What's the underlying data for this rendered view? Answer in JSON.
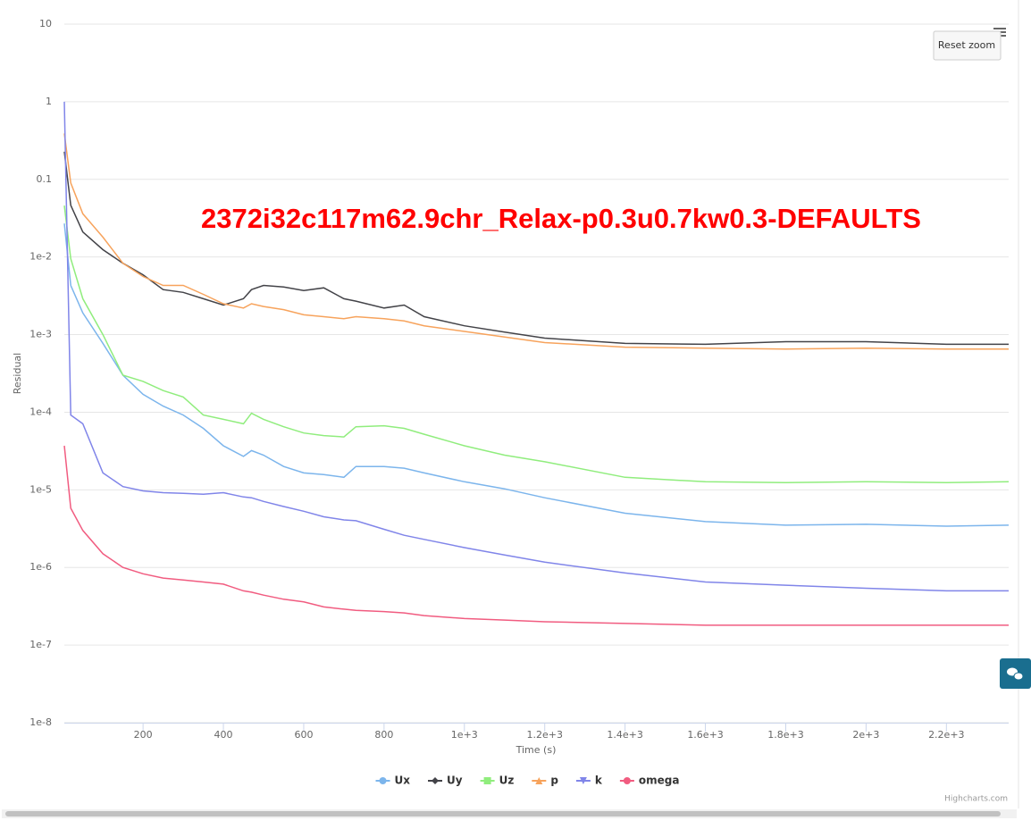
{
  "chart_data": {
    "type": "line",
    "annotation": "2372i32c117m62.9chr_Relax-p0.3u0.7kw0.3-DEFAULTS",
    "xlabel": "Time (s)",
    "ylabel": "Residual",
    "reset_zoom": "Reset zoom",
    "credits": "Highcharts.com",
    "ylog": true,
    "grid": true,
    "legend_position": "bottom",
    "xlim": [
      4,
      2355
    ],
    "ylim": [
      1e-08,
      10
    ],
    "xticks": [
      200,
      400,
      600,
      800,
      {
        "value": 1000,
        "label": "1e+3"
      },
      {
        "value": 1200,
        "label": "1.2e+3"
      },
      {
        "value": 1400,
        "label": "1.4e+3"
      },
      {
        "value": 1600,
        "label": "1.6e+3"
      },
      {
        "value": 1800,
        "label": "1.8e+3"
      },
      {
        "value": 2000,
        "label": "2e+3"
      },
      {
        "value": 2200,
        "label": "2.2e+3"
      }
    ],
    "yticks": [
      {
        "value": 1e-08,
        "label": "1e-8"
      },
      {
        "value": 1e-07,
        "label": "1e-7"
      },
      {
        "value": 1e-06,
        "label": "1e-6"
      },
      {
        "value": 1e-05,
        "label": "1e-5"
      },
      {
        "value": 0.0001,
        "label": "1e-4"
      },
      {
        "value": 0.001,
        "label": "1e-3"
      },
      {
        "value": 0.01,
        "label": "1e-2"
      },
      0.1,
      1,
      10
    ],
    "x": [
      4,
      20,
      50,
      100,
      150,
      200,
      250,
      300,
      350,
      400,
      450,
      470,
      500,
      550,
      600,
      650,
      700,
      730,
      800,
      850,
      900,
      1000,
      1100,
      1200,
      1400,
      1600,
      1800,
      2000,
      2200,
      2355
    ],
    "series": [
      {
        "name": "Ux",
        "color": "#7cb5ec",
        "marker": "circle",
        "values": [
          0.027,
          0.0043,
          0.0019,
          0.00077,
          0.0003,
          0.00017,
          0.00012,
          9.2e-05,
          6.2e-05,
          3.7e-05,
          2.7e-05,
          3.2e-05,
          2.8e-05,
          2e-05,
          1.65e-05,
          1.57e-05,
          1.45e-05,
          2e-05,
          2e-05,
          1.9e-05,
          1.65e-05,
          1.27e-05,
          1.03e-05,
          7.9e-06,
          5e-06,
          3.9e-06,
          3.5e-06,
          3.6e-06,
          3.4e-06,
          3.5e-06
        ]
      },
      {
        "name": "Uy",
        "color": "#434348",
        "marker": "diamond",
        "values": [
          0.227,
          0.0464,
          0.021,
          0.0124,
          0.0083,
          0.0059,
          0.0038,
          0.0035,
          0.0029,
          0.0024,
          0.0029,
          0.0038,
          0.0043,
          0.0041,
          0.0037,
          0.004,
          0.0029,
          0.0027,
          0.0022,
          0.0024,
          0.0017,
          0.0013,
          0.00108,
          0.0009,
          0.00077,
          0.00075,
          0.00081,
          0.00081,
          0.00075,
          0.00075
        ]
      },
      {
        "name": "Uz",
        "color": "#90ed7d",
        "marker": "square",
        "values": [
          0.046,
          0.0095,
          0.0029,
          0.001,
          0.0003,
          0.00025,
          0.00019,
          0.000157,
          9.2e-05,
          8.1e-05,
          7.1e-05,
          9.7e-05,
          8.1e-05,
          6.5e-05,
          5.4e-05,
          5e-05,
          4.8e-05,
          6.5e-05,
          6.7e-05,
          6.2e-05,
          5.2e-05,
          3.7e-05,
          2.8e-05,
          2.3e-05,
          1.45e-05,
          1.27e-05,
          1.24e-05,
          1.27e-05,
          1.24e-05,
          1.27e-05
        ]
      },
      {
        "name": "p",
        "color": "#f7a35c",
        "marker": "triangle",
        "values": [
          0.39,
          0.09,
          0.036,
          0.018,
          0.0083,
          0.0056,
          0.0043,
          0.0043,
          0.0033,
          0.0025,
          0.0022,
          0.0025,
          0.0023,
          0.0021,
          0.0018,
          0.0017,
          0.0016,
          0.0017,
          0.0016,
          0.0015,
          0.0013,
          0.0011,
          0.00093,
          0.00079,
          0.00069,
          0.00067,
          0.00065,
          0.00067,
          0.00065,
          0.00065
        ]
      },
      {
        "name": "k",
        "color": "#8085e9",
        "marker": "triangle-down",
        "values": [
          1,
          9.2e-05,
          7.1e-05,
          1.65e-05,
          1.1e-05,
          9.7e-06,
          9.2e-06,
          9e-06,
          8.8e-06,
          9.2e-06,
          8.1e-06,
          7.9e-06,
          7.1e-06,
          6.1e-06,
          5.3e-06,
          4.5e-06,
          4.1e-06,
          4e-06,
          3.1e-06,
          2.6e-06,
          2.3e-06,
          1.8e-06,
          1.45e-06,
          1.17e-06,
          8.5e-07,
          6.5e-07,
          5.9e-07,
          5.4e-07,
          5e-07,
          5e-07
        ]
      },
      {
        "name": "omega",
        "color": "#f15c80",
        "marker": "circle",
        "values": [
          3.7e-05,
          5.8e-06,
          3e-06,
          1.5e-06,
          1e-06,
          8.3e-07,
          7.3e-07,
          6.9e-07,
          6.5e-07,
          6.1e-07,
          5e-07,
          4.8e-07,
          4.4e-07,
          3.9e-07,
          3.6e-07,
          3.1e-07,
          2.9e-07,
          2.8e-07,
          2.7e-07,
          2.6e-07,
          2.4e-07,
          2.2e-07,
          2.1e-07,
          2e-07,
          1.9e-07,
          1.8e-07,
          1.8e-07,
          1.8e-07,
          1.8e-07,
          1.8e-07
        ]
      }
    ]
  }
}
